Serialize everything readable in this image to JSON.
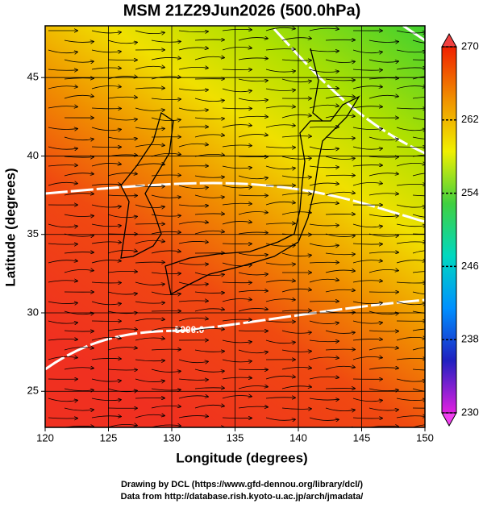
{
  "chart_data": {
    "type": "map",
    "title": "MSM 21Z29Jun2026 (500.0hPa)",
    "xlabel": "Longitude (degrees)",
    "ylabel": "Latitude  (degrees)",
    "xlim": [
      120,
      150
    ],
    "xticks": [
      120,
      125,
      130,
      135,
      140,
      145,
      150
    ],
    "ylim": [
      22.7,
      48.3
    ],
    "yticks": [
      25,
      30,
      35,
      40,
      45
    ],
    "grid": true,
    "contour_label": "5900.0",
    "colorbar": {
      "lim": [
        230,
        270
      ],
      "ticks": [
        230,
        238,
        246,
        254,
        262,
        270
      ],
      "colors": [
        "#e020e0",
        "#2020c0",
        "#0090ff",
        "#00d8c0",
        "#40d040",
        "#f0f000",
        "#f09000",
        "#f02000"
      ]
    },
    "credits": [
      "Drawing by DCL (https://www.gfd-dennou.org/library/dcl/)",
      "Data from http://database.rish.kyoto-u.ac.jp/arch/jmadata/"
    ]
  }
}
